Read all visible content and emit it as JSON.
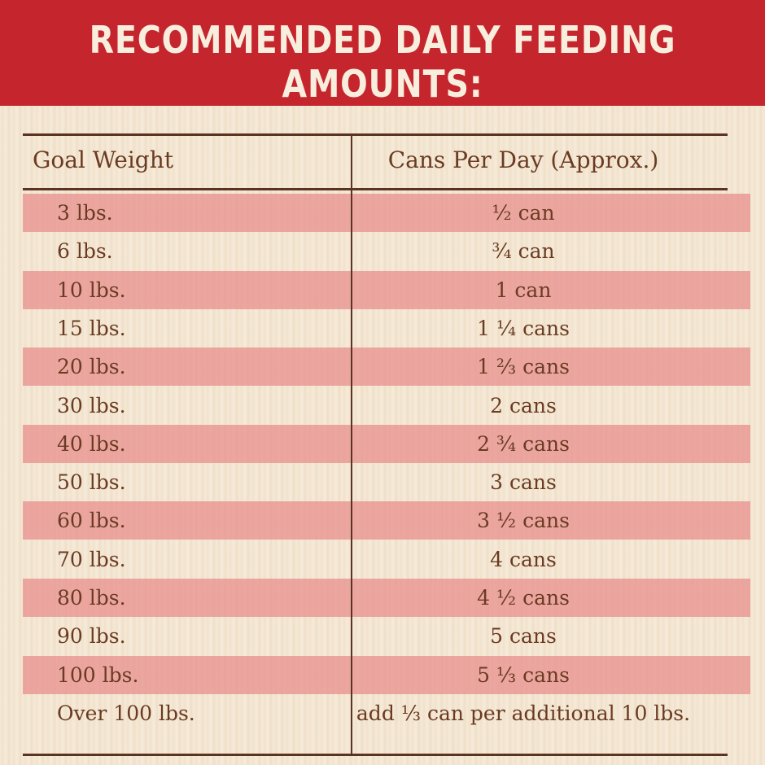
{
  "header": {
    "title": "RECOMMENDED DAILY FEEDING AMOUNTS:"
  },
  "table": {
    "columns": [
      "Goal Weight",
      "Cans Per Day (Approx.)"
    ],
    "rows": [
      [
        "3 lbs.",
        "½ can"
      ],
      [
        "6 lbs.",
        "¾ can"
      ],
      [
        "10 lbs.",
        "1 can"
      ],
      [
        "15 lbs.",
        "1 ¼ cans"
      ],
      [
        "20 lbs.",
        "1 ⅔ cans"
      ],
      [
        "30 lbs.",
        "2 cans"
      ],
      [
        "40 lbs.",
        "2 ¾ cans"
      ],
      [
        "50 lbs.",
        "3 cans"
      ],
      [
        "60 lbs.",
        "3 ½ cans"
      ],
      [
        "70 lbs.",
        "4 cans"
      ],
      [
        "80 lbs.",
        "4 ½ cans"
      ],
      [
        "90 lbs.",
        "5 cans"
      ],
      [
        "100 lbs.",
        "5 ⅓ cans"
      ],
      [
        "Over 100 lbs.",
        "add ⅓ can per additional 10 lbs."
      ]
    ]
  }
}
